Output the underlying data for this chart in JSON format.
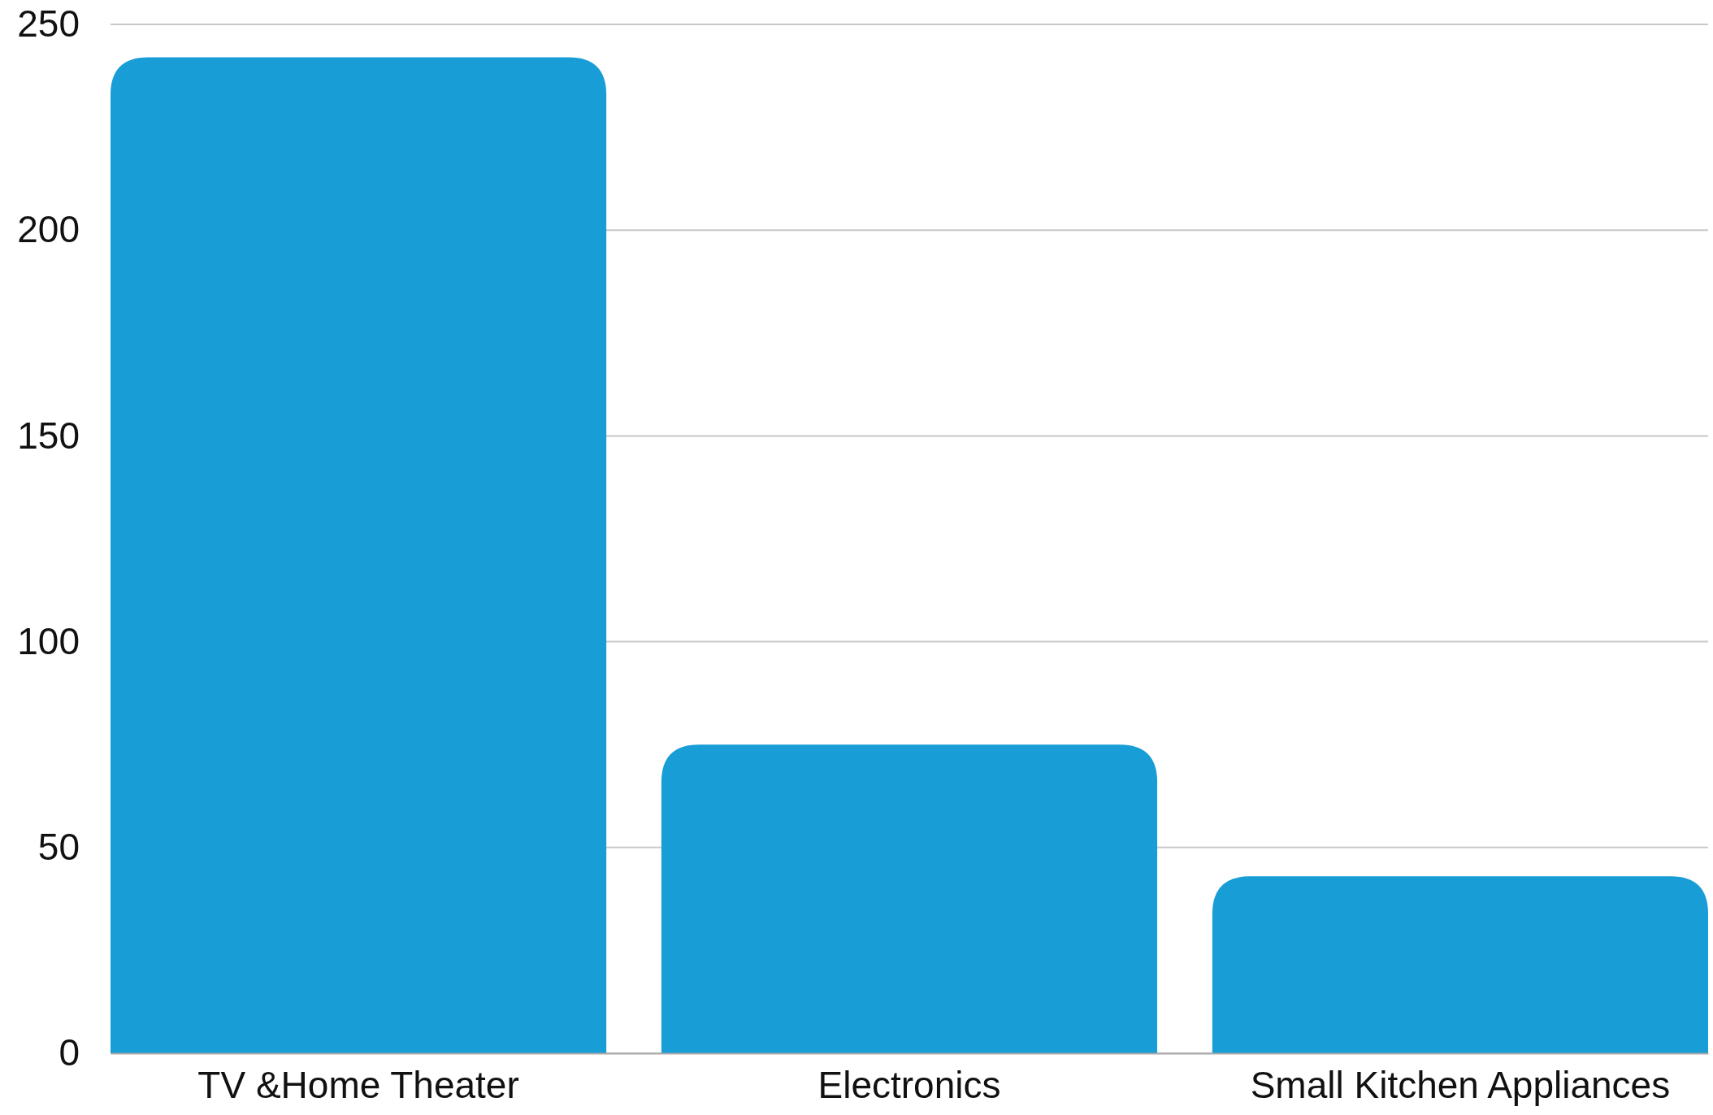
{
  "chart_data": {
    "type": "bar",
    "categories": [
      "TV &Home Theater",
      "Electronics",
      "Small Kitchen Appliances"
    ],
    "values": [
      242,
      75,
      43
    ],
    "color": "#189dd6",
    "ylim": [
      0,
      250
    ],
    "yticks": [
      0,
      50,
      100,
      150,
      200,
      250
    ],
    "grid": "y"
  }
}
